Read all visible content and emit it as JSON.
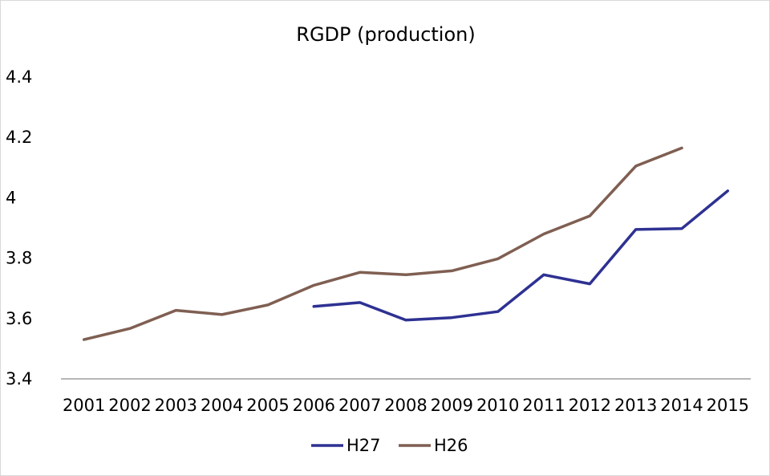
{
  "chart_data": {
    "type": "line",
    "title": "RGDP (production)",
    "xlabel": "",
    "ylabel": "",
    "categories": [
      "2001",
      "2002",
      "2003",
      "2004",
      "2005",
      "2006",
      "2007",
      "2008",
      "2009",
      "2010",
      "2011",
      "2012",
      "2013",
      "2014",
      "2015"
    ],
    "ylim": [
      3.4,
      4.4
    ],
    "yticks": [
      "3.4",
      "3.6",
      "3.8",
      "4",
      "4.2",
      "4.4"
    ],
    "legend_position": "bottom",
    "series": [
      {
        "name": "H27",
        "color": "#2e3192",
        "values": [
          null,
          null,
          null,
          null,
          null,
          3.64,
          3.653,
          3.595,
          3.603,
          3.623,
          3.745,
          3.715,
          3.895,
          3.898,
          4.023
        ]
      },
      {
        "name": "H26",
        "color": "#7f5f52",
        "values": [
          3.53,
          3.567,
          3.627,
          3.613,
          3.645,
          3.71,
          3.753,
          3.745,
          3.758,
          3.798,
          3.88,
          3.94,
          4.105,
          4.165,
          null
        ]
      }
    ]
  }
}
